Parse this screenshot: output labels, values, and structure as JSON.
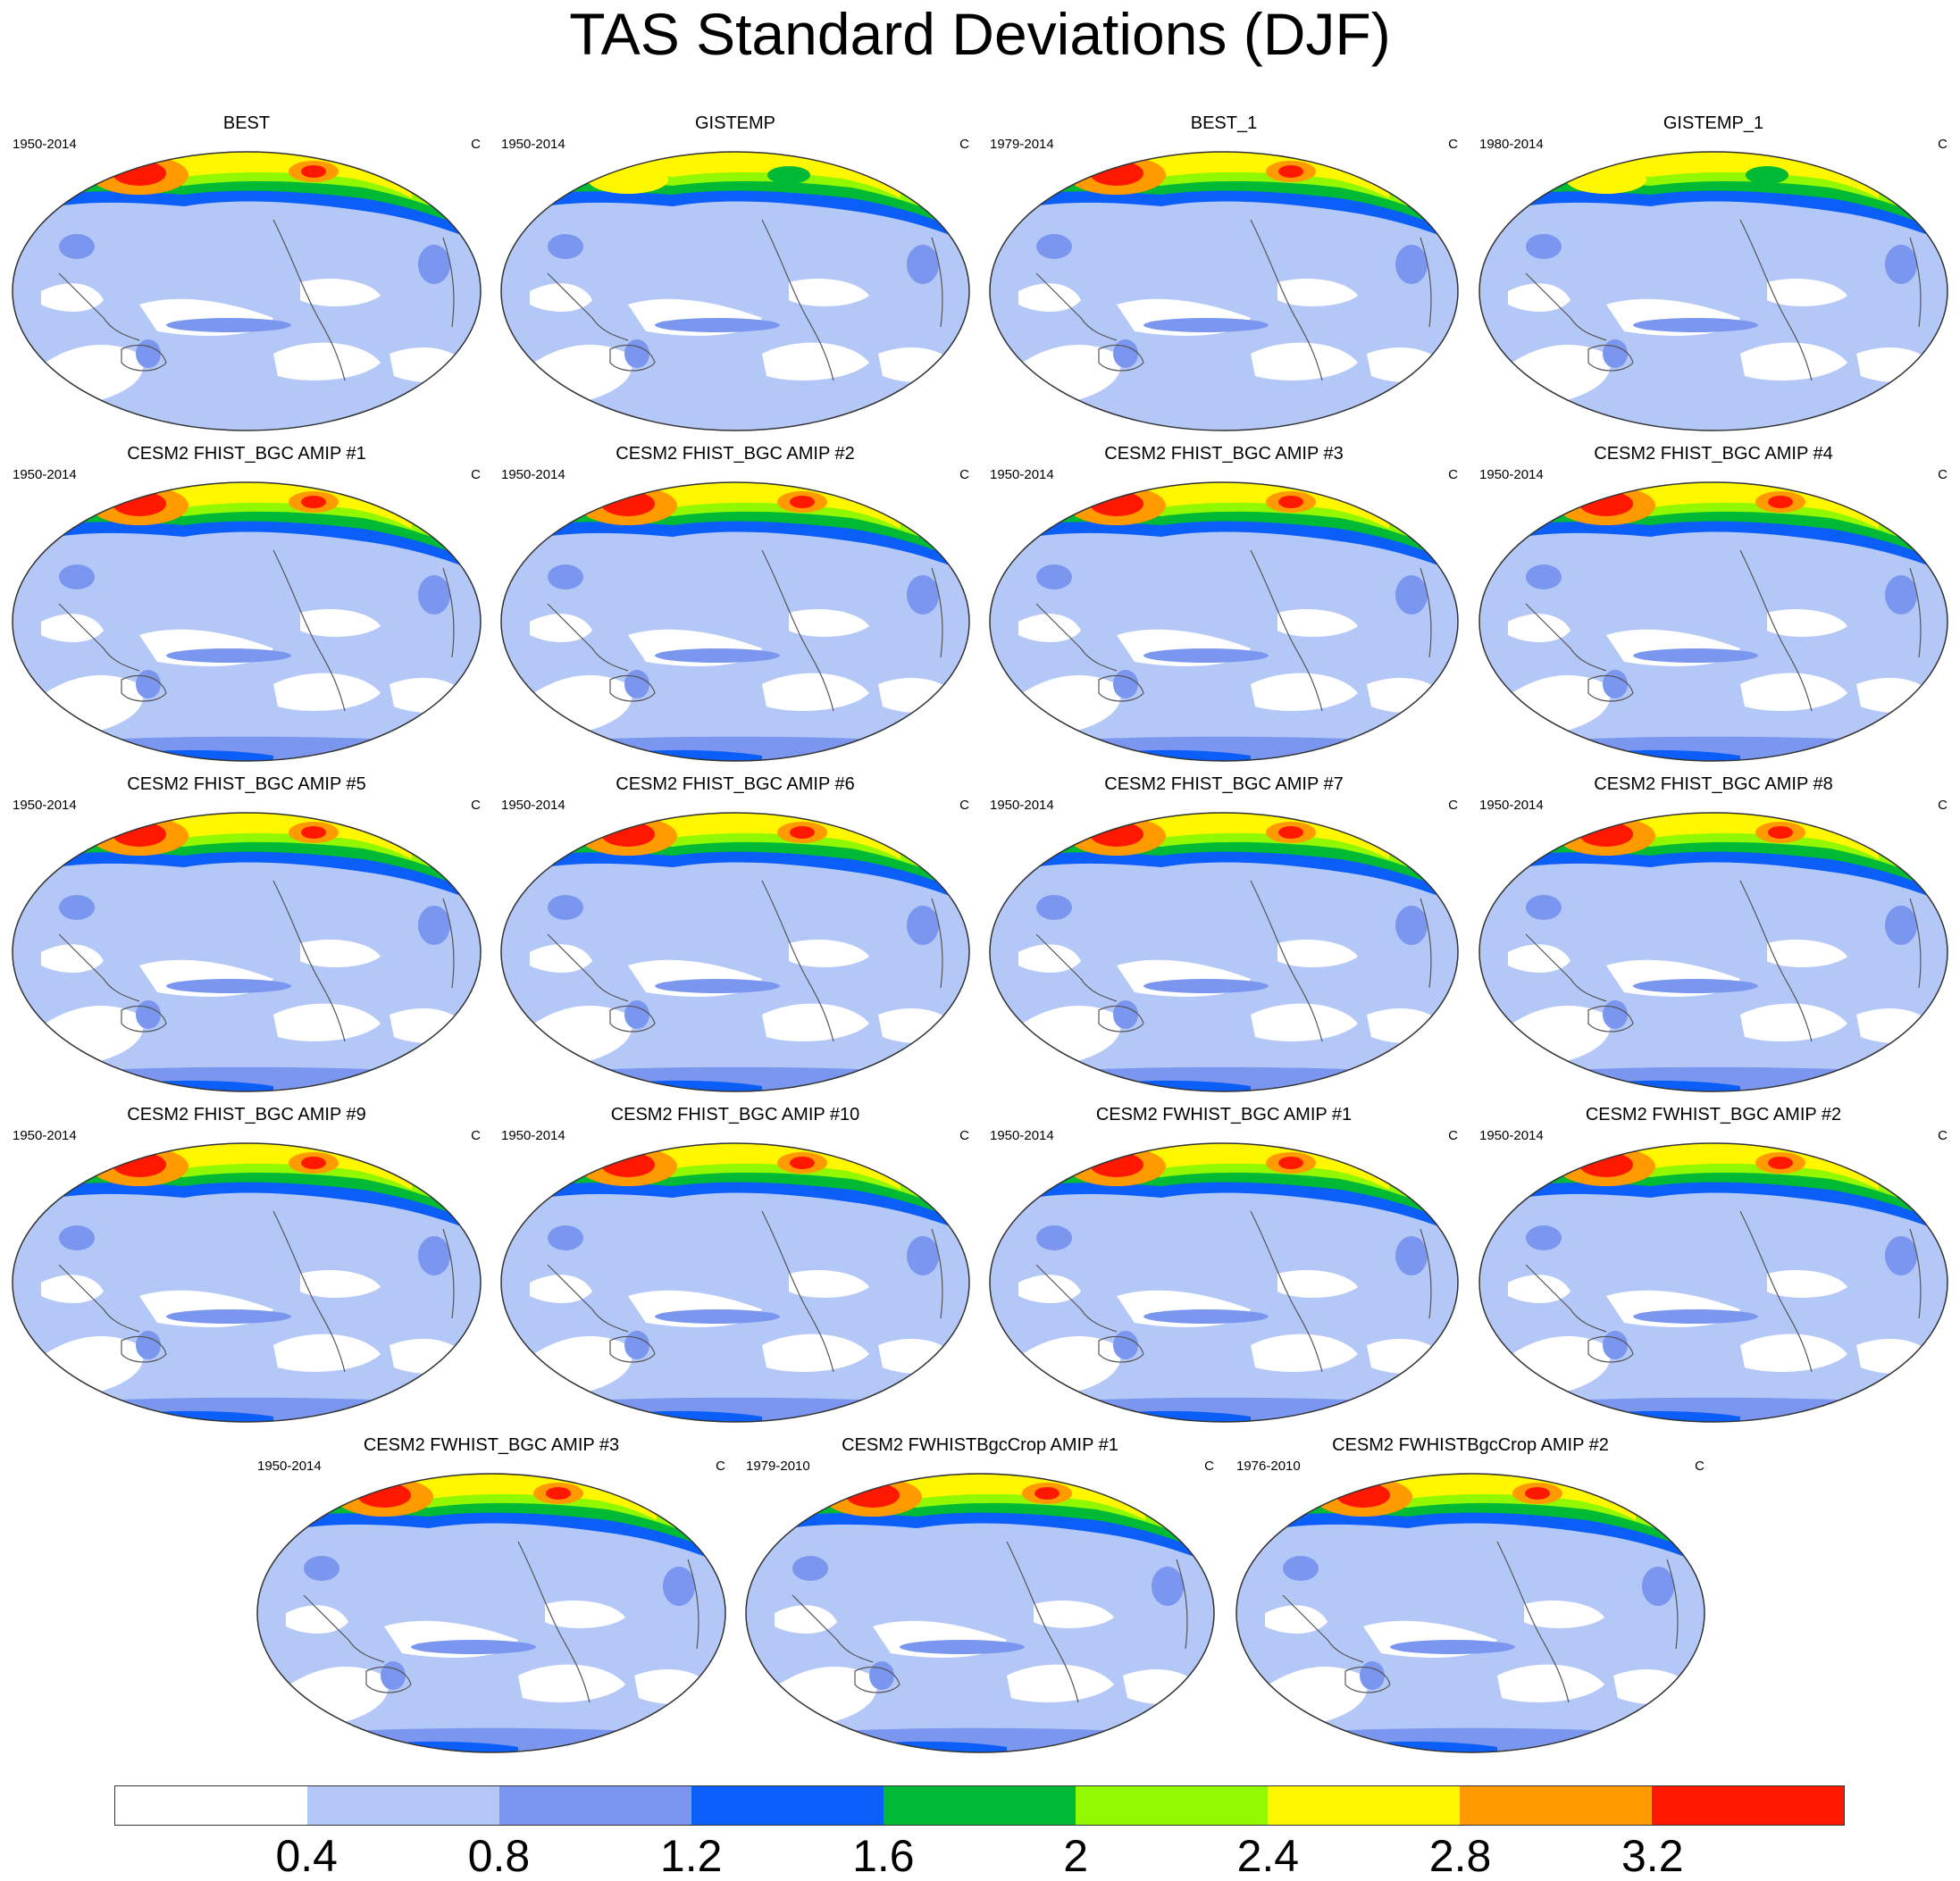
{
  "title": "TAS Standard Deviations (DJF)",
  "panels": [
    {
      "title": "BEST",
      "years": "1950-2014",
      "unit": "C",
      "variant": "obs"
    },
    {
      "title": "GISTEMP",
      "years": "1950-2014",
      "unit": "C",
      "variant": "obs-smooth"
    },
    {
      "title": "BEST_1",
      "years": "1979-2014",
      "unit": "C",
      "variant": "obs"
    },
    {
      "title": "GISTEMP_1",
      "years": "1980-2014",
      "unit": "C",
      "variant": "obs-smooth"
    },
    {
      "title": "CESM2 FHIST_BGC AMIP #1",
      "years": "1950-2014",
      "unit": "C",
      "variant": "model"
    },
    {
      "title": "CESM2 FHIST_BGC AMIP #2",
      "years": "1950-2014",
      "unit": "C",
      "variant": "model"
    },
    {
      "title": "CESM2 FHIST_BGC AMIP #3",
      "years": "1950-2014",
      "unit": "C",
      "variant": "model"
    },
    {
      "title": "CESM2 FHIST_BGC AMIP #4",
      "years": "1950-2014",
      "unit": "C",
      "variant": "model"
    },
    {
      "title": "CESM2 FHIST_BGC AMIP #5",
      "years": "1950-2014",
      "unit": "C",
      "variant": "model"
    },
    {
      "title": "CESM2 FHIST_BGC AMIP #6",
      "years": "1950-2014",
      "unit": "C",
      "variant": "model"
    },
    {
      "title": "CESM2 FHIST_BGC AMIP #7",
      "years": "1950-2014",
      "unit": "C",
      "variant": "model"
    },
    {
      "title": "CESM2 FHIST_BGC AMIP #8",
      "years": "1950-2014",
      "unit": "C",
      "variant": "model"
    },
    {
      "title": "CESM2 FHIST_BGC AMIP #9",
      "years": "1950-2014",
      "unit": "C",
      "variant": "model"
    },
    {
      "title": "CESM2 FHIST_BGC AMIP #10",
      "years": "1950-2014",
      "unit": "C",
      "variant": "model"
    },
    {
      "title": "CESM2 FWHIST_BGC AMIP #1",
      "years": "1950-2014",
      "unit": "C",
      "variant": "model"
    },
    {
      "title": "CESM2 FWHIST_BGC AMIP #2",
      "years": "1950-2014",
      "unit": "C",
      "variant": "model"
    },
    {
      "title": "CESM2 FWHIST_BGC AMIP #3",
      "years": "1950-2014",
      "unit": "C",
      "variant": "model"
    },
    {
      "title": "CESM2 FWHISTBgcCrop AMIP #1",
      "years": "1979-2010",
      "unit": "C",
      "variant": "model"
    },
    {
      "title": "CESM2 FWHISTBgcCrop AMIP #2",
      "years": "1976-2010",
      "unit": "C",
      "variant": "model"
    }
  ],
  "colorbar": {
    "colors": [
      "#ffffff",
      "#b4c8f8",
      "#7a96ee",
      "#0c5ef8",
      "#00b935",
      "#91f800",
      "#fff700",
      "#ff9a00",
      "#ff1800"
    ],
    "labels": [
      "0.4",
      "0.8",
      "1.2",
      "1.6",
      "2",
      "2.4",
      "2.8",
      "3.2"
    ]
  },
  "map_colors": {
    "ocean_low": "#b4c8f8",
    "ocean_calm": "#ffffff",
    "mid": "#7a96ee",
    "blue": "#0c5ef8",
    "green": "#00b935",
    "lime": "#91f800",
    "yellow": "#fff700",
    "orange": "#ff9a00",
    "red": "#ff1800",
    "coast": "#555555"
  }
}
